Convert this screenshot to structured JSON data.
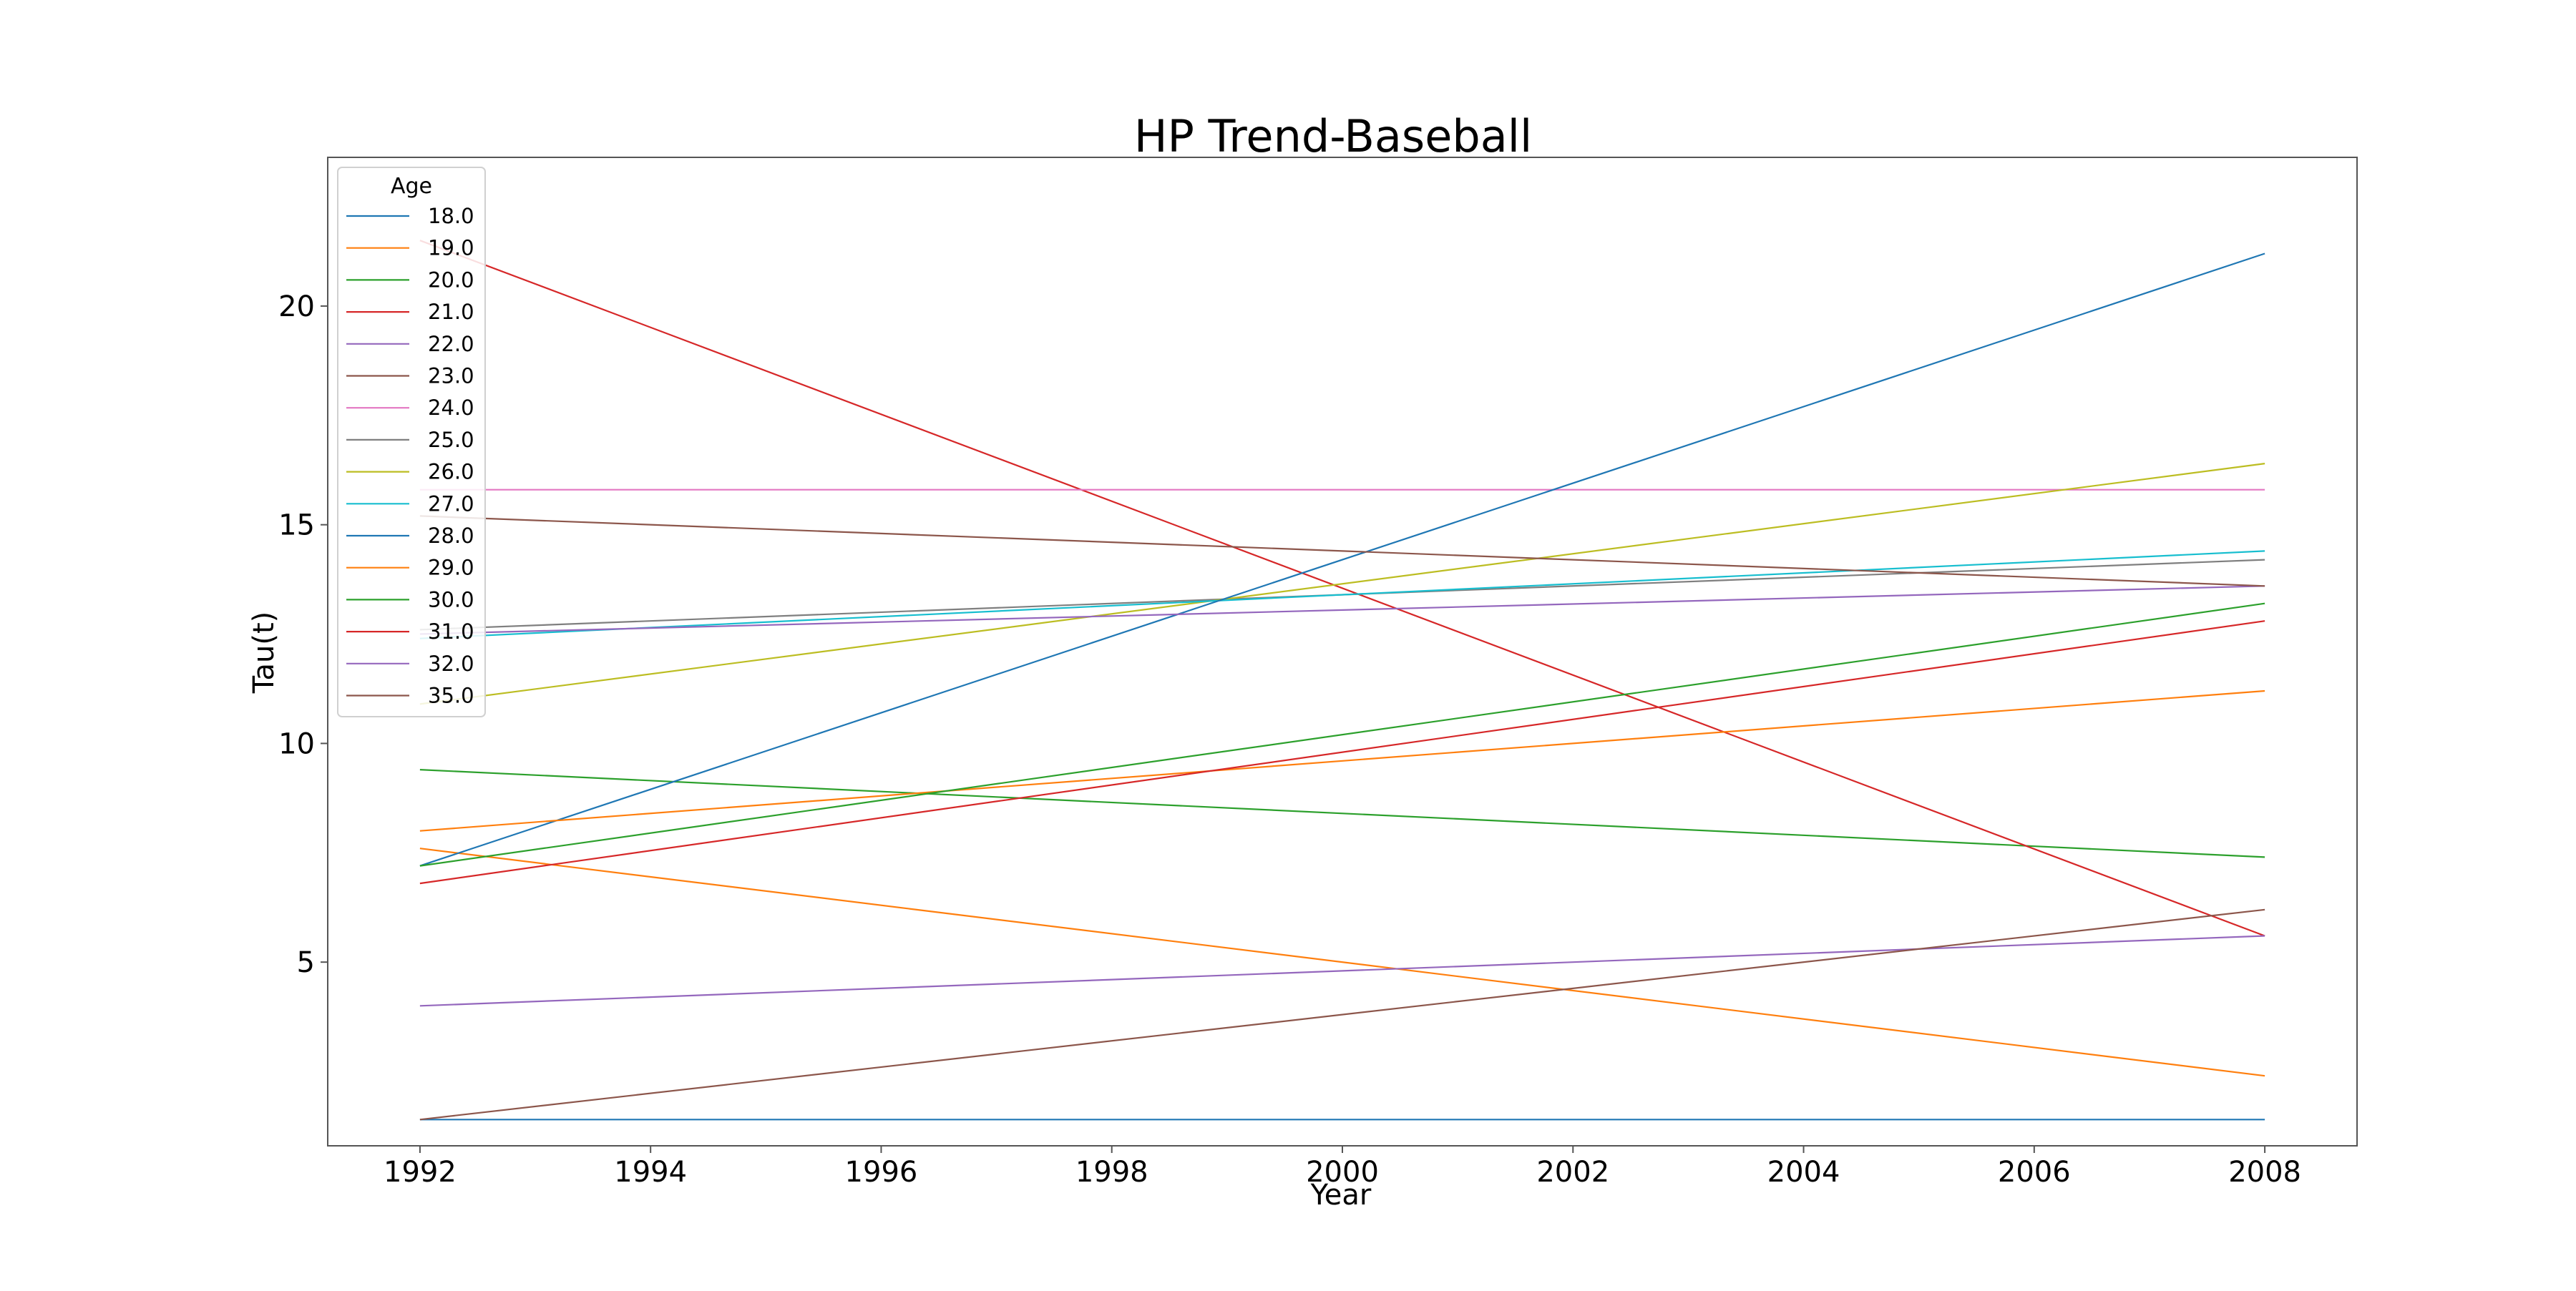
{
  "chart_data": {
    "type": "line",
    "title": "HP Trend-Baseball",
    "xlabel": "Year",
    "ylabel": "Tau(t)",
    "xlim": [
      1991.2,
      2008.8
    ],
    "ylim": [
      0.8,
      23.4
    ],
    "xticks": [
      1992,
      1994,
      1996,
      1998,
      2000,
      2002,
      2004,
      2006,
      2008
    ],
    "xtick_labels": [
      "1992",
      "1994",
      "1996",
      "1998",
      "2000",
      "2002",
      "2004",
      "2006",
      "2008"
    ],
    "yticks": [
      5,
      10,
      15,
      20
    ],
    "ytick_labels": [
      "5",
      "10",
      "15",
      "20"
    ],
    "grid": false,
    "legend": {
      "title": "Age",
      "position": "top-left"
    },
    "x": [
      1992,
      2008
    ],
    "series": [
      {
        "name": "18.0",
        "color": "#1f77b4",
        "values": [
          1.4,
          1.4
        ]
      },
      {
        "name": "19.0",
        "color": "#ff7f0e",
        "values": [
          7.6,
          2.4
        ]
      },
      {
        "name": "20.0",
        "color": "#2ca02c",
        "values": [
          9.4,
          7.4
        ]
      },
      {
        "name": "21.0",
        "color": "#d62728",
        "values": [
          21.5,
          5.6
        ]
      },
      {
        "name": "22.0",
        "color": "#9467bd",
        "values": [
          4.0,
          5.6
        ]
      },
      {
        "name": "23.0",
        "color": "#8c564b",
        "values": [
          1.4,
          6.2
        ]
      },
      {
        "name": "24.0",
        "color": "#e377c2",
        "values": [
          15.8,
          15.8
        ]
      },
      {
        "name": "25.0",
        "color": "#7f7f7f",
        "values": [
          12.6,
          14.2
        ]
      },
      {
        "name": "26.0",
        "color": "#bcbd22",
        "values": [
          10.9,
          16.4
        ]
      },
      {
        "name": "27.0",
        "color": "#17becf",
        "values": [
          12.4,
          14.4
        ]
      },
      {
        "name": "28.0",
        "color": "#1f77b4",
        "values": [
          7.2,
          21.2
        ]
      },
      {
        "name": "29.0",
        "color": "#ff7f0e",
        "values": [
          8.0,
          11.2
        ]
      },
      {
        "name": "30.0",
        "color": "#2ca02c",
        "values": [
          7.2,
          13.2
        ]
      },
      {
        "name": "31.0",
        "color": "#d62728",
        "values": [
          6.8,
          12.8
        ]
      },
      {
        "name": "32.0",
        "color": "#9467bd",
        "values": [
          12.5,
          13.6
        ]
      },
      {
        "name": "35.0",
        "color": "#8c564b",
        "values": [
          15.2,
          13.6
        ]
      }
    ]
  }
}
